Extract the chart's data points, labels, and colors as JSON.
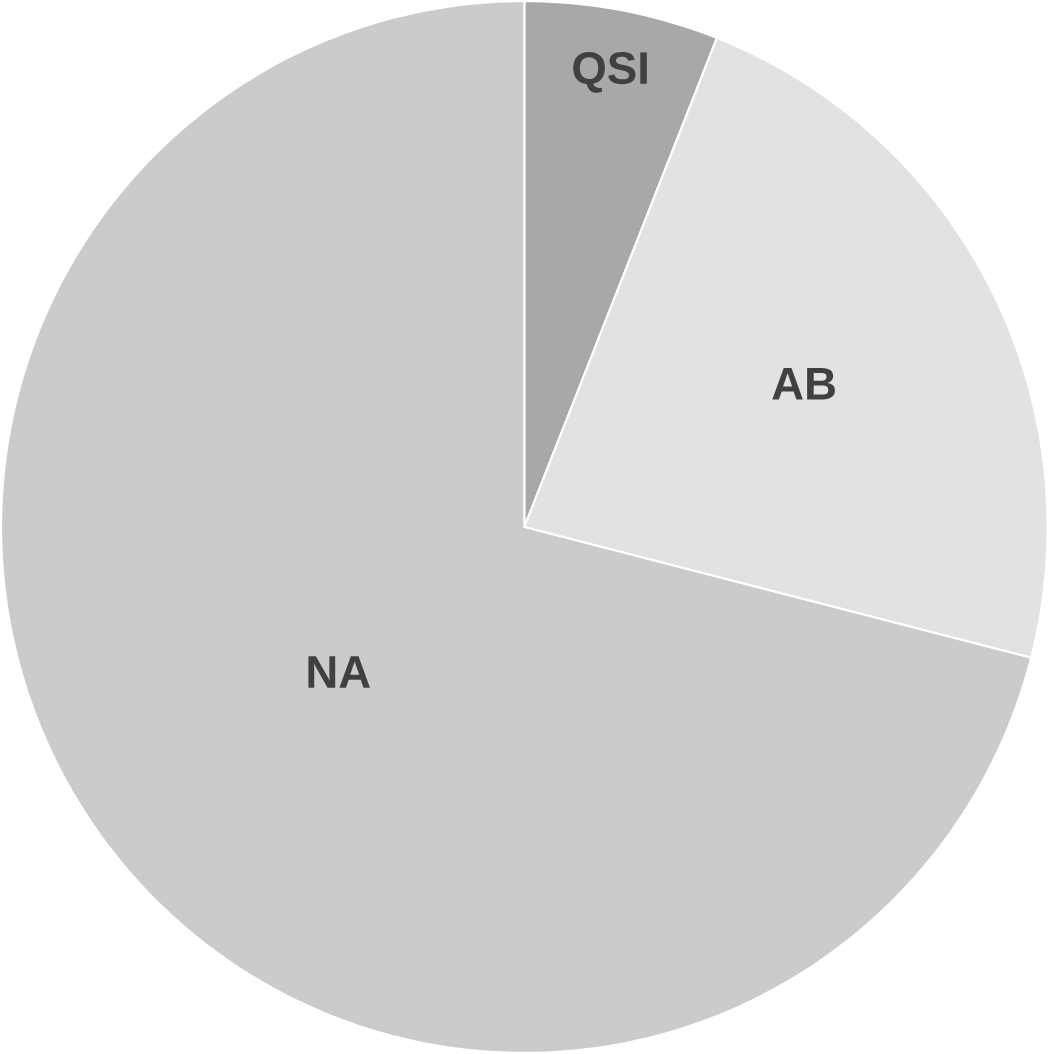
{
  "chart_data": {
    "type": "pie",
    "categories": [
      "QSI",
      "AB",
      "NA"
    ],
    "values": [
      6,
      23,
      71
    ],
    "colors": [
      "#a8a8a8",
      "#e2e2e2",
      "#cbcbcb"
    ]
  }
}
